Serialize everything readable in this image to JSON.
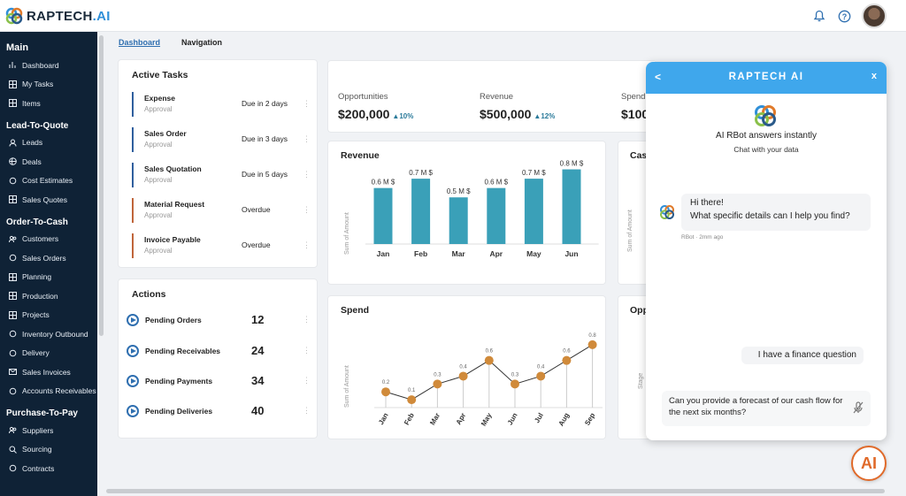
{
  "app": {
    "logo_main": "RAPTECH",
    "logo_suffix": ".AI"
  },
  "header": {
    "icons": [
      "bell-icon",
      "help-icon"
    ]
  },
  "breadcrumb": {
    "active": "Dashboard",
    "second": "Navigation"
  },
  "sidebar": {
    "sections": [
      {
        "title": "Main",
        "items": [
          {
            "label": "Dashboard",
            "icon": "chart-icon"
          },
          {
            "label": "My Tasks",
            "icon": "grid-icon"
          },
          {
            "label": "Items",
            "icon": "grid-icon"
          }
        ]
      },
      {
        "title": "Lead-To-Quote",
        "items": [
          {
            "label": "Leads",
            "icon": "user-icon"
          },
          {
            "label": "Deals",
            "icon": "globe-icon"
          },
          {
            "label": "Cost Estimates",
            "icon": "car-icon"
          },
          {
            "label": "Sales Quotes",
            "icon": "grid-icon"
          }
        ]
      },
      {
        "title": "Order-To-Cash",
        "items": [
          {
            "label": "Customers",
            "icon": "users-icon"
          },
          {
            "label": "Sales Orders",
            "icon": "recycle-icon"
          },
          {
            "label": "Planning",
            "icon": "grid-icon"
          },
          {
            "label": "Production",
            "icon": "grid-icon"
          },
          {
            "label": "Projects",
            "icon": "grid-icon"
          },
          {
            "label": "Inventory Outbound",
            "icon": "plane-icon"
          },
          {
            "label": "Delivery",
            "icon": "truck-icon"
          },
          {
            "label": "Sales Invoices",
            "icon": "mail-icon"
          },
          {
            "label": "Accounts Receivables",
            "icon": "handshake-icon"
          }
        ]
      },
      {
        "title": "Purchase-To-Pay",
        "items": [
          {
            "label": "Suppliers",
            "icon": "users-icon"
          },
          {
            "label": "Sourcing",
            "icon": "search-icon"
          },
          {
            "label": "Contracts",
            "icon": "hand-icon"
          }
        ]
      }
    ]
  },
  "active_tasks": {
    "title": "Active Tasks",
    "colors": {
      "blue": "#2f5f9e",
      "orange": "#c0653a"
    },
    "items": [
      {
        "name": "Expense",
        "type": "Approval",
        "due": "Due in 2 days",
        "color": "#2f5f9e"
      },
      {
        "name": "Sales Order",
        "type": "Approval",
        "due": "Due in 3 days",
        "color": "#2f5f9e"
      },
      {
        "name": "Sales Quotation",
        "type": "Approval",
        "due": "Due in 5 days",
        "color": "#2f5f9e"
      },
      {
        "name": "Material Request",
        "type": "Approval",
        "due": "Overdue",
        "color": "#c0653a"
      },
      {
        "name": "Invoice Payable",
        "type": "Approval",
        "due": "Overdue",
        "color": "#c0653a"
      }
    ]
  },
  "actions": {
    "title": "Actions",
    "items": [
      {
        "label": "Pending Orders",
        "count": "12"
      },
      {
        "label": "Pending Receivables",
        "count": "24"
      },
      {
        "label": "Pending Payments",
        "count": "34"
      },
      {
        "label": "Pending Deliveries",
        "count": "40"
      }
    ]
  },
  "kpis": [
    {
      "label": "Opportunities",
      "value": "$200,000",
      "change": "10%"
    },
    {
      "label": "Revenue",
      "value": "$500,000",
      "change": "12%"
    },
    {
      "label": "Spend",
      "value": "$100",
      "change": ""
    }
  ],
  "revenue": {
    "title": "Revenue",
    "ylabel": "Sum of Amount"
  },
  "spend": {
    "title": "Spend",
    "ylabel": "Sum of Amount"
  },
  "cash": {
    "title": "Cas",
    "ylabel": "Sum of Amount"
  },
  "opp": {
    "title": "Oppo",
    "ylabel": "Stage"
  },
  "chart_data": [
    {
      "type": "bar",
      "title": "Revenue",
      "ylabel": "Sum of Amount",
      "categories": [
        "Jan",
        "Feb",
        "Mar",
        "Apr",
        "May",
        "Jun"
      ],
      "values": [
        0.6,
        0.7,
        0.5,
        0.6,
        0.7,
        0.8
      ],
      "data_labels": [
        "0.6 M $",
        "0.7 M $",
        "0.5 M $",
        "0.6 M $",
        "0.7 M $",
        "0.8 M $"
      ],
      "color": "#3aa0b8",
      "ylim": [
        0,
        0.9
      ]
    },
    {
      "type": "line",
      "title": "Spend",
      "ylabel": "Sum of Amount",
      "categories": [
        "Jan",
        "Feb",
        "Mar",
        "Apr",
        "May",
        "Jun",
        "Jul",
        "Aug",
        "Sep"
      ],
      "values": [
        0.2,
        0.1,
        0.3,
        0.4,
        0.6,
        0.3,
        0.4,
        0.6,
        0.8
      ],
      "color": "#d08a3a",
      "ylim": [
        0,
        0.9
      ]
    }
  ],
  "chat": {
    "brand": "RAPTECH AI",
    "back": "<",
    "close": "x",
    "heading": "AI RBot answers instantly",
    "subheading": "Chat with your data",
    "bot_message_1": "Hi there!",
    "bot_message_2": "What specific details can I help you find?",
    "bot_meta": "RBot · 2mm ago",
    "user_message": "I have a finance question",
    "input_text": "Can you provide a forecast of our cash flow for the next six months?"
  },
  "fab": {
    "label": "AI"
  }
}
